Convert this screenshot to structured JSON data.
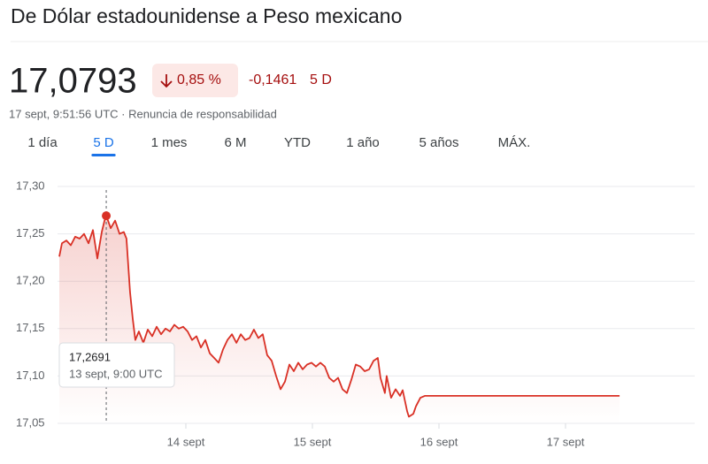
{
  "header": {
    "title": "De Dólar estadounidense a Peso mexicano",
    "price": "17,0793",
    "change_percent": "0,85 %",
    "change": "-0,1461",
    "period": "5 D",
    "timestamp": "17 sept, 9:51:56 UTC · Renuncia de responsabilidad"
  },
  "tabs": {
    "items": [
      "1 día",
      "5 D",
      "1 mes",
      "6 M",
      "YTD",
      "1 año",
      "5 años",
      "MÁX."
    ],
    "selected": 1
  },
  "chart_data": {
    "type": "line",
    "color": "#d93025",
    "x": [
      13,
      13.021,
      13.056,
      13.091,
      13.126,
      13.161,
      13.196,
      13.231,
      13.266,
      13.301,
      13.336,
      13.357,
      13.371,
      13.406,
      13.441,
      13.476,
      13.51,
      13.531,
      13.559,
      13.58,
      13.601,
      13.629,
      13.664,
      13.699,
      13.734,
      13.769,
      13.804,
      13.839,
      13.874,
      13.909,
      13.944,
      13.979,
      14.014,
      14.049,
      14.084,
      14.119,
      14.154,
      14.189,
      14.224,
      14.259,
      14.294,
      14.329,
      14.364,
      14.399,
      14.434,
      14.469,
      14.503,
      14.538,
      14.573,
      14.608,
      14.643,
      14.678,
      14.713,
      14.748,
      14.783,
      14.818,
      14.853,
      14.888,
      14.923,
      14.958,
      14.993,
      15.028,
      15.063,
      15.098,
      15.133,
      15.168,
      15.203,
      15.238,
      15.273,
      15.308,
      15.343,
      15.378,
      15.413,
      15.448,
      15.483,
      15.517,
      15.538,
      15.573,
      15.587,
      15.622,
      15.657,
      15.692,
      15.713,
      15.748,
      15.762,
      15.797,
      15.818,
      15.853,
      15.888,
      17.427
    ],
    "values": [
      17.226,
      17.24,
      17.243,
      17.238,
      17.247,
      17.245,
      17.25,
      17.24,
      17.254,
      17.224,
      17.252,
      17.264,
      17.2691,
      17.256,
      17.264,
      17.25,
      17.252,
      17.245,
      17.189,
      17.161,
      17.138,
      17.147,
      17.135,
      17.149,
      17.142,
      17.152,
      17.144,
      17.15,
      17.147,
      17.154,
      17.15,
      17.152,
      17.147,
      17.138,
      17.142,
      17.13,
      17.138,
      17.124,
      17.119,
      17.114,
      17.128,
      17.138,
      17.144,
      17.135,
      17.144,
      17.138,
      17.14,
      17.149,
      17.14,
      17.144,
      17.122,
      17.116,
      17.1,
      17.086,
      17.094,
      17.112,
      17.105,
      17.114,
      17.107,
      17.112,
      17.114,
      17.11,
      17.114,
      17.11,
      17.098,
      17.094,
      17.098,
      17.086,
      17.082,
      17.096,
      17.112,
      17.11,
      17.105,
      17.107,
      17.116,
      17.119,
      17.098,
      17.082,
      17.1,
      17.077,
      17.086,
      17.079,
      17.085,
      17.063,
      17.057,
      17.06,
      17.068,
      17.077,
      17.079,
      17.079
    ],
    "xlim": [
      13,
      18
    ],
    "xticks": [
      {
        "value": 14,
        "label": "14 sept"
      },
      {
        "value": 15,
        "label": "15 sept"
      },
      {
        "value": 16,
        "label": "16 sept"
      },
      {
        "value": 17,
        "label": "17 sept"
      }
    ],
    "ylim": [
      17.05,
      17.3
    ],
    "yticks": [
      {
        "value": 17.05,
        "label": "17,05"
      },
      {
        "value": 17.1,
        "label": "17,10"
      },
      {
        "value": 17.15,
        "label": "17,15"
      },
      {
        "value": 17.2,
        "label": "17,20"
      },
      {
        "value": 17.25,
        "label": "17,25"
      },
      {
        "value": 17.3,
        "label": "17,30"
      }
    ],
    "grid": true,
    "tooltip": {
      "value": 17.2691,
      "label": "17,2691",
      "time": "13 sept, 9:00 UTC"
    }
  }
}
